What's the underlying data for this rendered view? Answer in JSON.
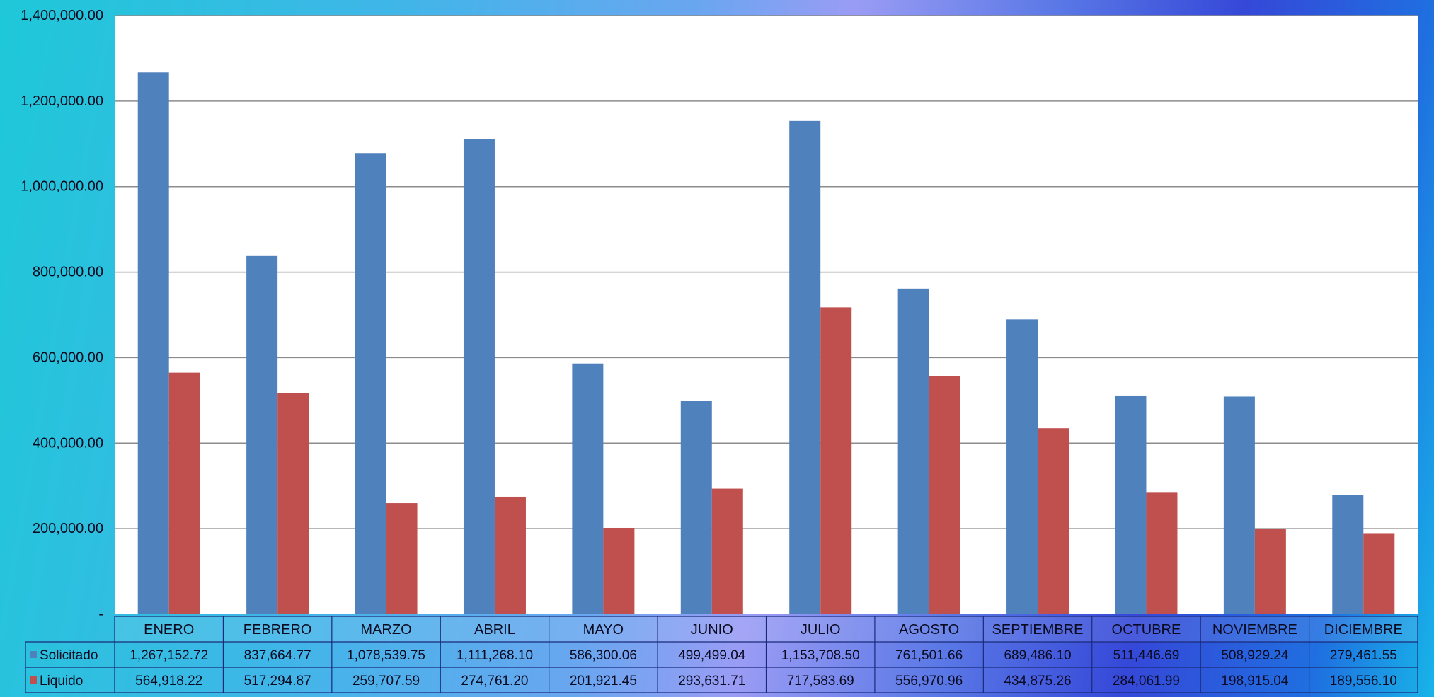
{
  "chart_data": {
    "type": "bar",
    "categories": [
      "ENERO",
      "FEBRERO",
      "MARZO",
      "ABRIL",
      "MAYO",
      "JUNIO",
      "JULIO",
      "AGOSTO",
      "SEPTIEMBRE",
      "OCTUBRE",
      "NOVIEMBRE",
      "DICIEMBRE"
    ],
    "series": [
      {
        "name": "Solicitado",
        "color": "#4f81bd",
        "values": [
          1267152.72,
          837664.77,
          1078539.75,
          1111268.1,
          586300.06,
          499499.04,
          1153708.5,
          761501.66,
          689486.1,
          511446.69,
          508929.24,
          279461.55
        ],
        "labels": [
          "1,267,152.72",
          "837,664.77",
          "1,078,539.75",
          "1,111,268.10",
          "586,300.06",
          "499,499.04",
          "1,153,708.50",
          "761,501.66",
          "689,486.10",
          "511,446.69",
          "508,929.24",
          "279,461.55"
        ]
      },
      {
        "name": "Liquido",
        "color": "#c0504d",
        "values": [
          564918.22,
          517294.87,
          259707.59,
          274761.2,
          201921.45,
          293631.71,
          717583.69,
          556970.96,
          434875.26,
          284061.99,
          198915.04,
          189556.1
        ],
        "labels": [
          "564,918.22",
          "517,294.87",
          "259,707.59",
          "274,761.20",
          "201,921.45",
          "293,631.71",
          "717,583.69",
          "556,970.96",
          "434,875.26",
          "284,061.99",
          "198,915.04",
          "189,556.10"
        ]
      }
    ],
    "ylim": [
      0,
      1400000
    ],
    "yticks": [
      0,
      200000,
      400000,
      600000,
      800000,
      1000000,
      1200000,
      1400000
    ],
    "ytick_labels": [
      "-",
      "200,000.00",
      "400,000.00",
      "600,000.00",
      "800,000.00",
      "1,000,000.00",
      "1,200,000.00",
      "1,400,000.00"
    ],
    "grid": true,
    "legend": "data-table"
  }
}
